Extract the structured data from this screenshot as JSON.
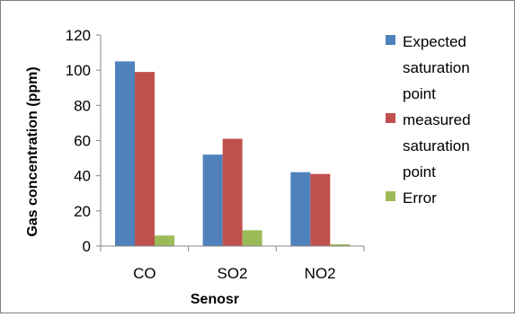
{
  "chart_data": {
    "type": "bar",
    "title": "",
    "xlabel": "Senosr",
    "ylabel": "Gas concentration (ppm)",
    "ylim": [
      0,
      120
    ],
    "yticks": [
      0,
      20,
      40,
      60,
      80,
      100,
      120
    ],
    "categories": [
      "CO",
      "SO2",
      "NO2"
    ],
    "series": [
      {
        "name": "Expected saturation point",
        "legend_lines": [
          "Expected",
          "saturation",
          "point"
        ],
        "color": "#4f81bd",
        "values": [
          105,
          52,
          42
        ]
      },
      {
        "name": "measured saturation point",
        "legend_lines": [
          "measured",
          "saturation",
          "point"
        ],
        "color": "#c0504d",
        "values": [
          99,
          61,
          41
        ]
      },
      {
        "name": "Error",
        "legend_lines": [
          "Error"
        ],
        "color": "#9bbb59",
        "values": [
          6,
          9,
          1
        ]
      }
    ],
    "grid": false,
    "legend_position": "right"
  }
}
